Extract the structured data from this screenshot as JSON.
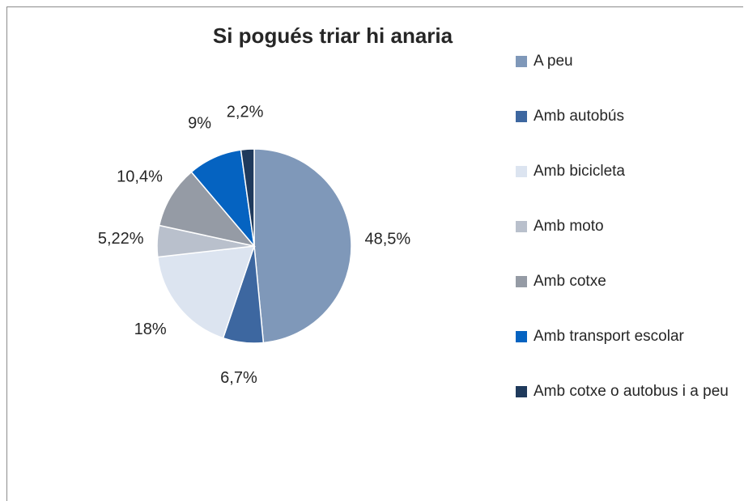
{
  "chart_data": {
    "type": "pie",
    "title": "Si pogués triar hi anaria",
    "categories": [
      "A peu",
      "Amb autobús",
      "Amb bicicleta",
      "Amb moto",
      "Amb cotxe",
      "Amb transport escolar",
      "Amb cotxe o autobus i a peu"
    ],
    "values": [
      48.5,
      6.7,
      18,
      5.22,
      10.4,
      9,
      2.2
    ],
    "value_labels": [
      "48,5%",
      "6,7%",
      "18%",
      "5,22%",
      "10,4%",
      "9%",
      "2,2%"
    ],
    "colors": [
      "#7f98b9",
      "#3d67a0",
      "#dce4f0",
      "#b9c0cc",
      "#959ba5",
      "#0563c1",
      "#1f3a5c"
    ],
    "legend": "right"
  }
}
